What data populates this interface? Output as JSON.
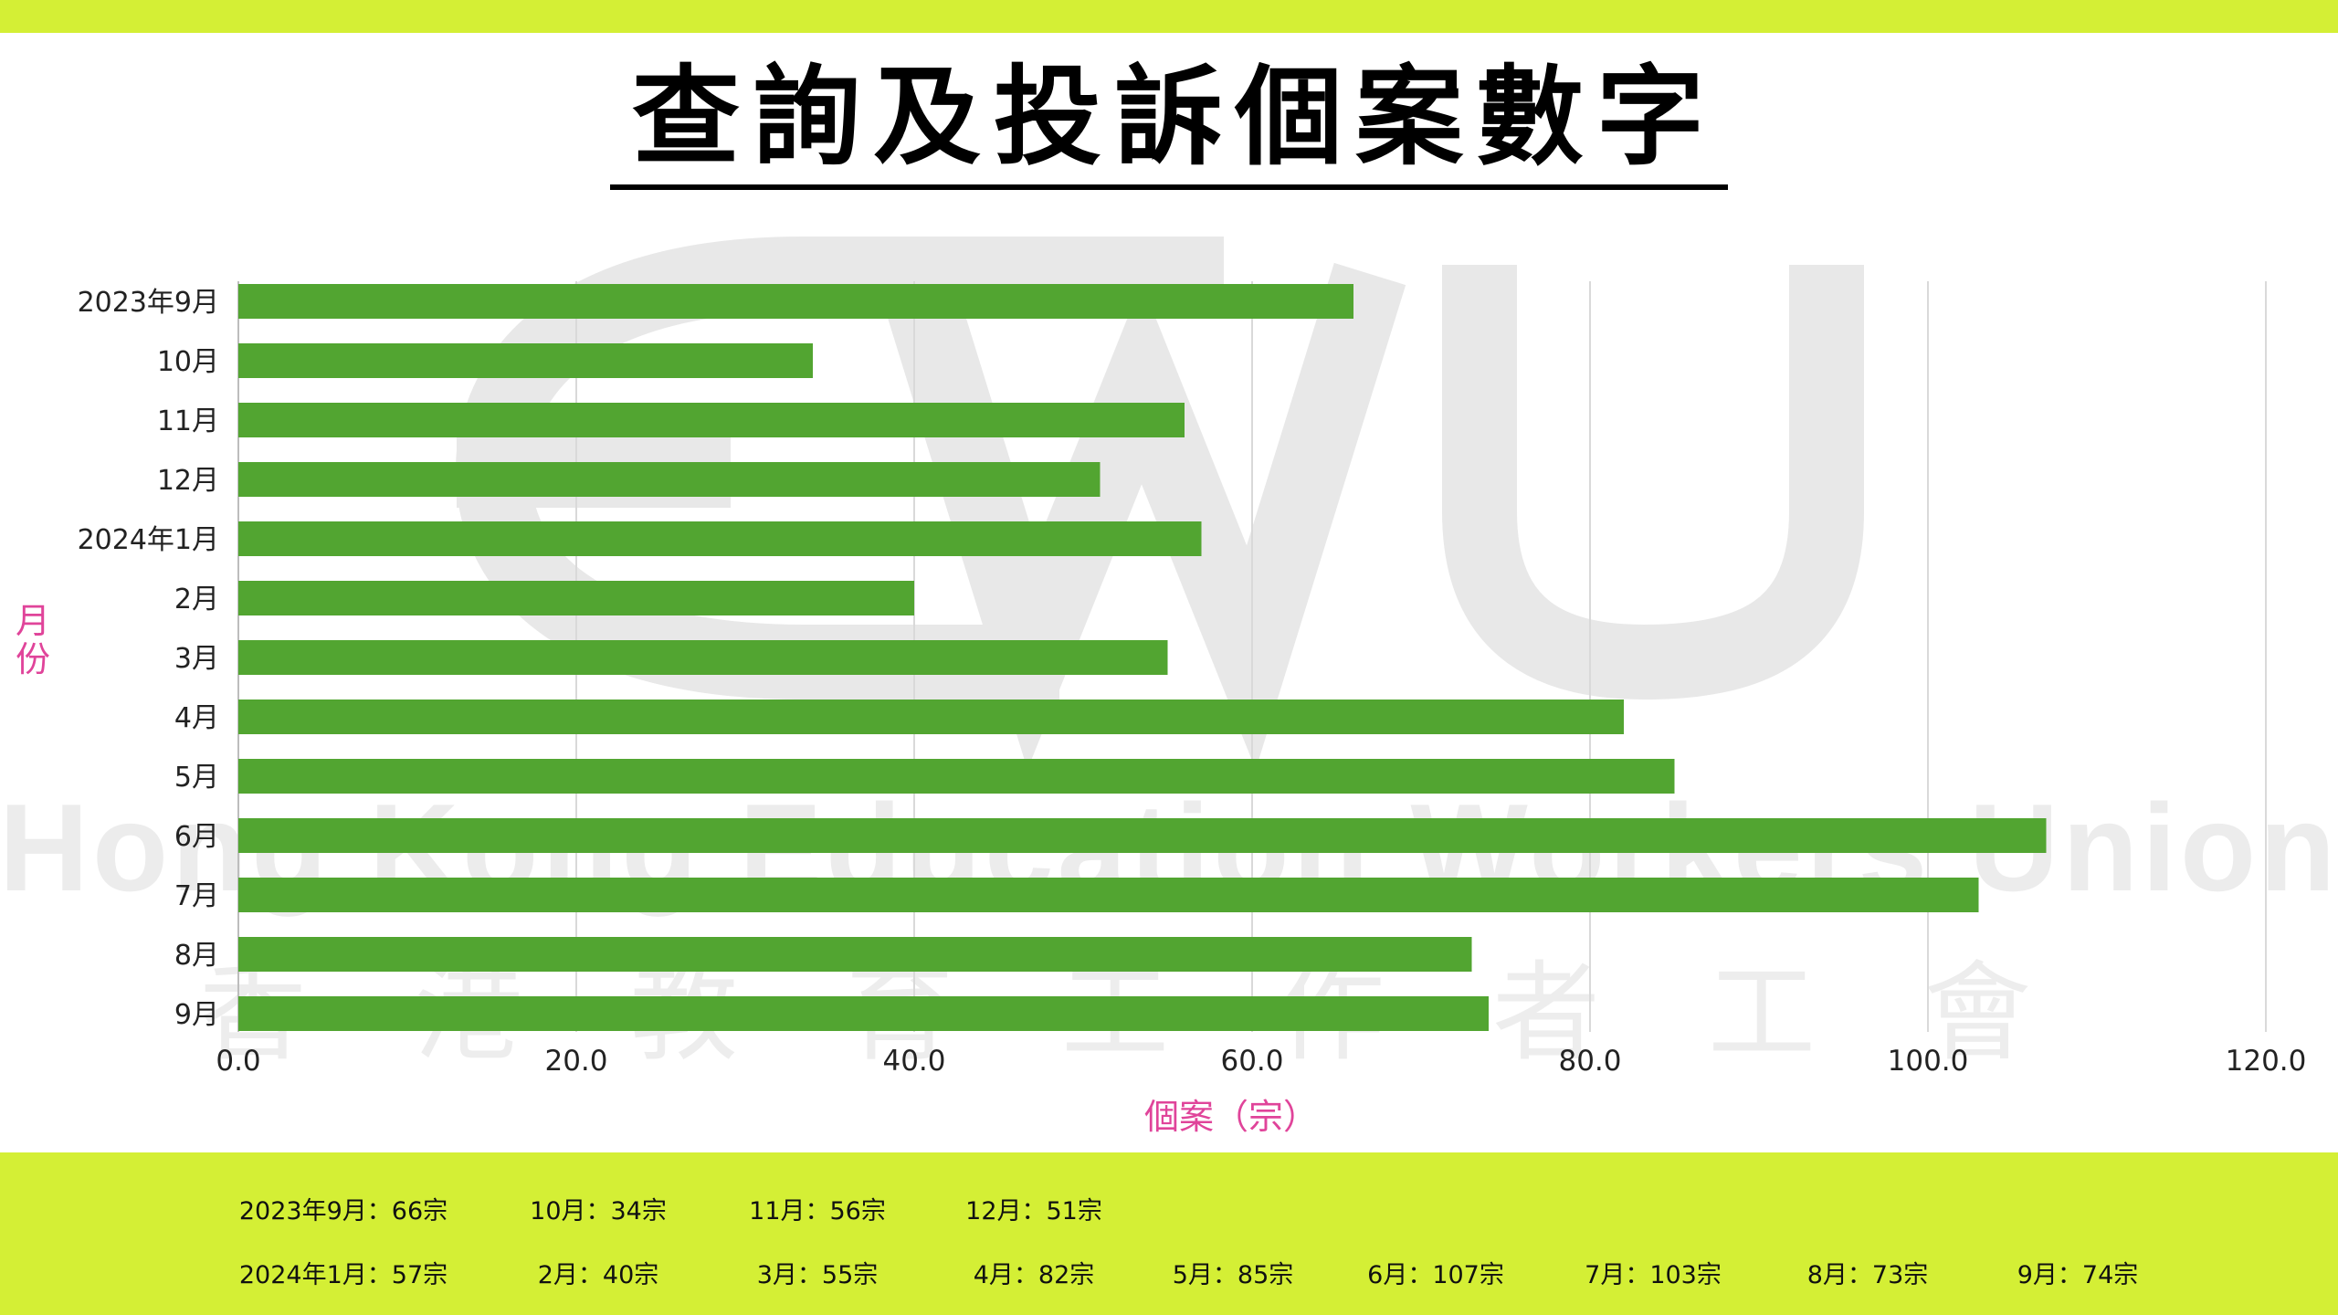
{
  "title": "查詢及投訴個案數字",
  "watermark": {
    "logo_text": "EWU",
    "english": "Hong Kong Education Workers Union",
    "chinese": "香港教育工作者工會"
  },
  "colors": {
    "bar": "#52a531",
    "band": "#d4ef35",
    "axis_title": "#e0449a",
    "grid": "#d9d9d9"
  },
  "chart_data": {
    "type": "bar",
    "orientation": "horizontal",
    "categories": [
      "2023年9月",
      "10月",
      "11月",
      "12月",
      "2024年1月",
      "2月",
      "3月",
      "4月",
      "5月",
      "6月",
      "7月",
      "8月",
      "9月"
    ],
    "values": [
      66,
      34,
      56,
      51,
      57,
      40,
      55,
      82,
      85,
      107,
      103,
      73,
      74
    ],
    "xlabel": "個案（宗）",
    "ylabel": "月份",
    "xlim": [
      0,
      120
    ],
    "xticks": [
      "0.0",
      "20.0",
      "40.0",
      "60.0",
      "80.0",
      "100.0",
      "120.0"
    ],
    "grid": "vertical"
  },
  "summary": {
    "row1": [
      "2023年9月：66宗",
      "10月：34宗",
      "11月：56宗",
      "12月：51宗"
    ],
    "row2": [
      "2024年1月：57宗",
      "2月：40宗",
      "3月：55宗",
      "4月：82宗",
      "5月：85宗",
      "6月：107宗",
      "7月：103宗",
      "8月：73宗",
      "9月：74宗"
    ]
  }
}
